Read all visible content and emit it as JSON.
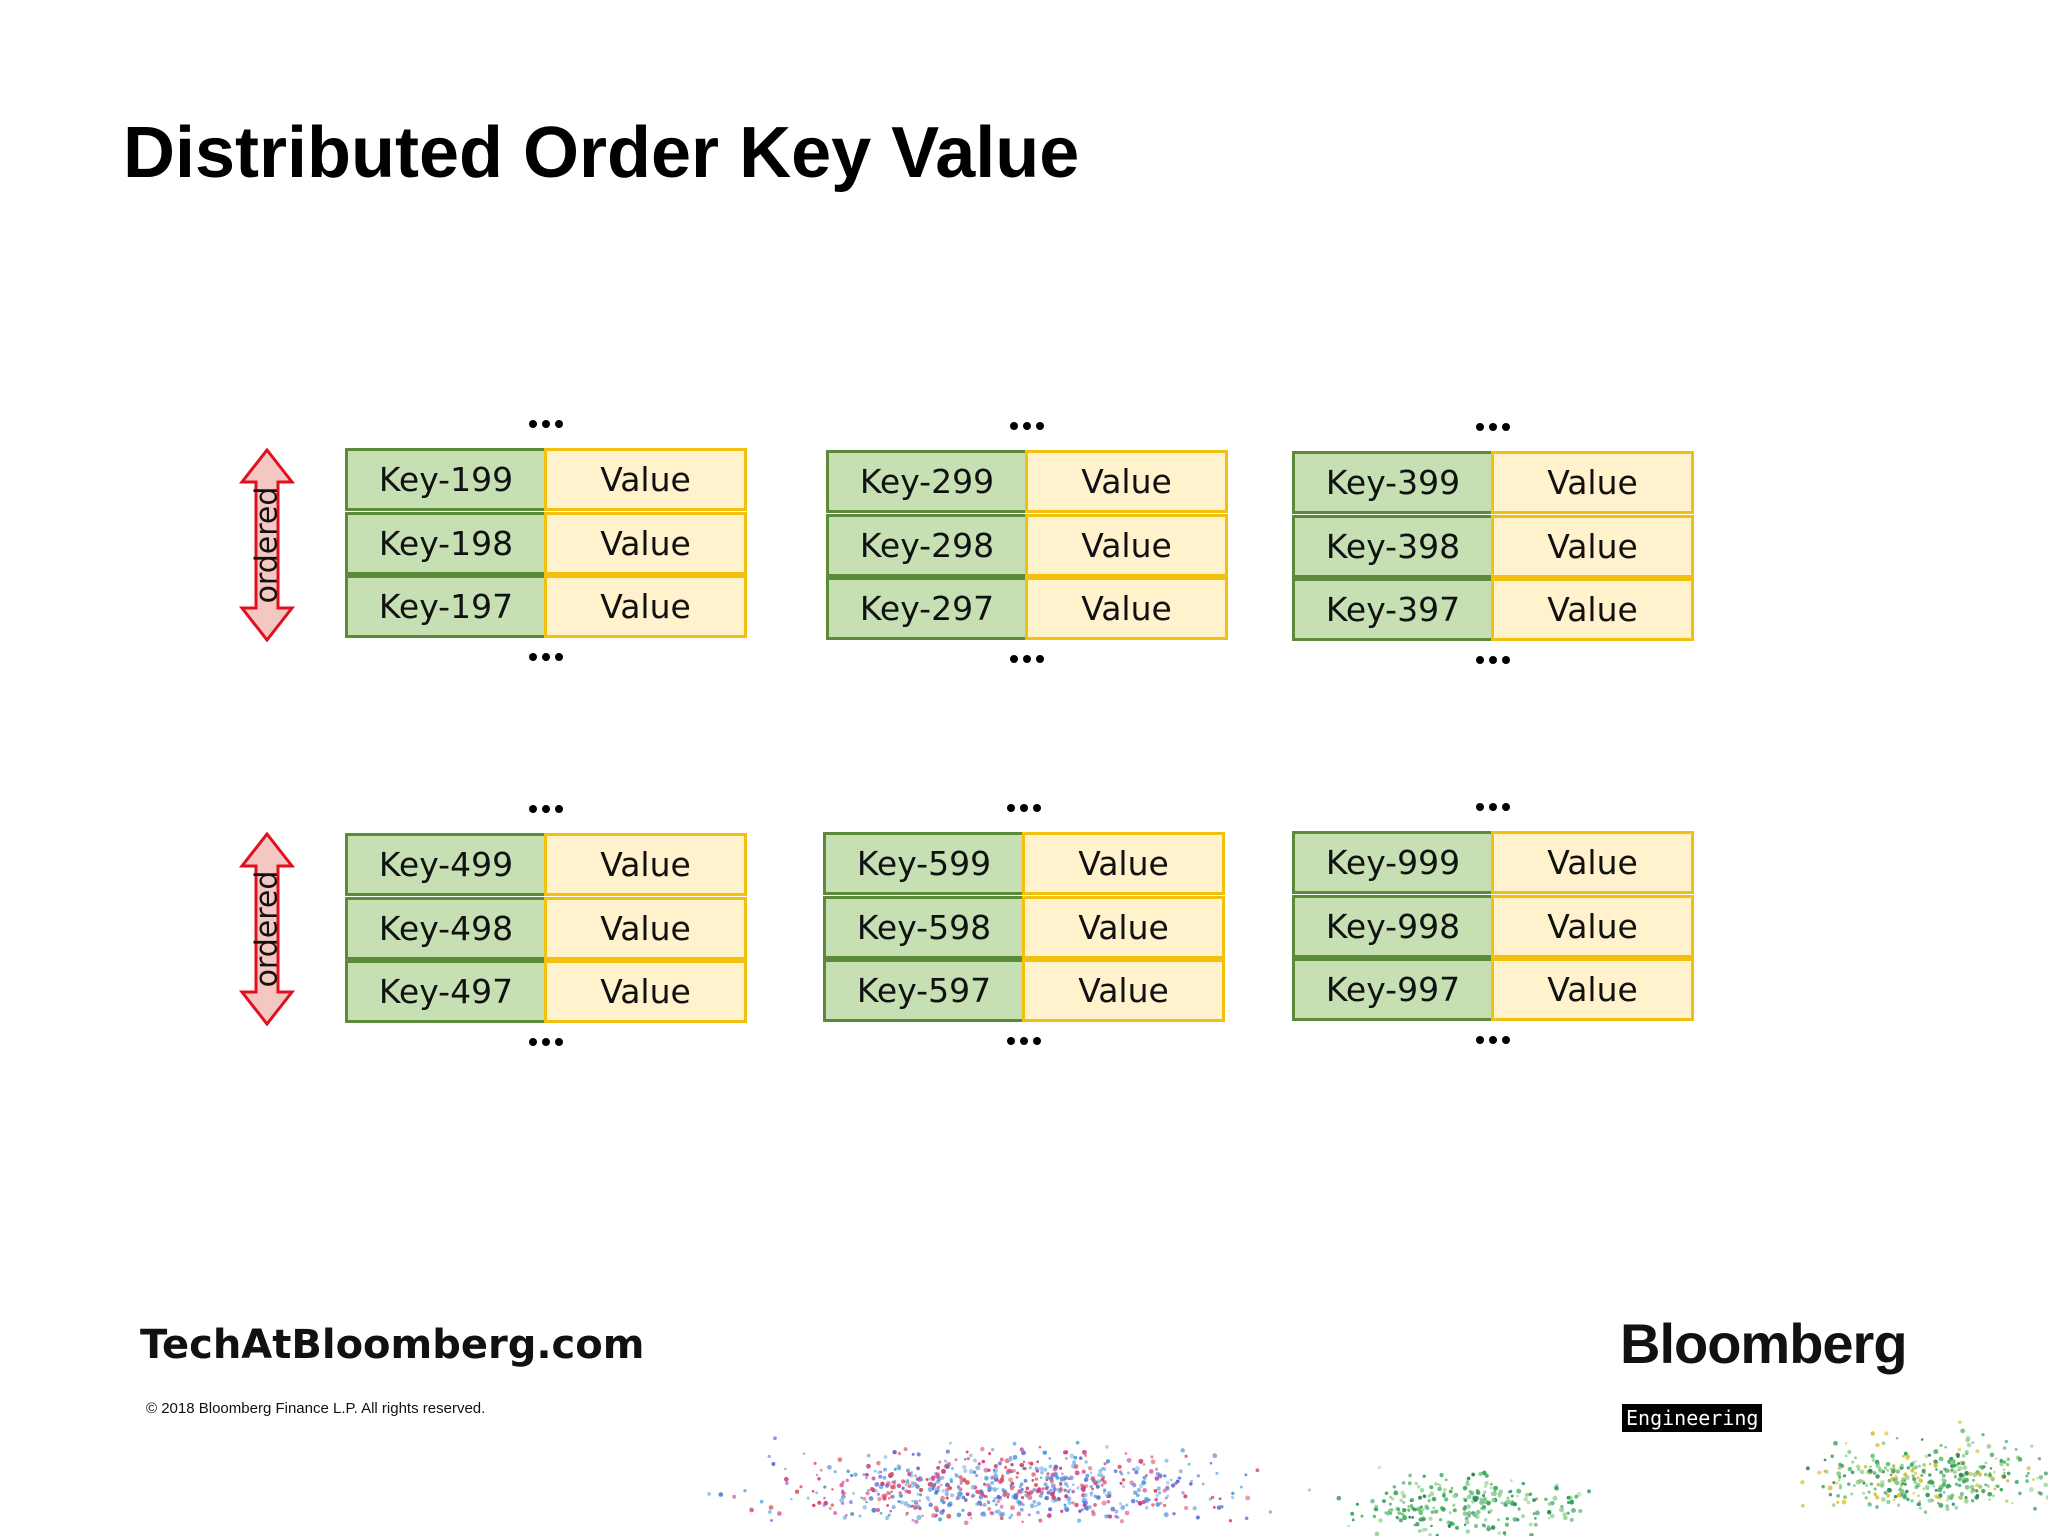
{
  "slide": {
    "title": "Distributed Order Key Value"
  },
  "diagram": {
    "arrow_label": "ordered",
    "ellipsis": "...",
    "colors": {
      "key_fill": "#c6e0b4",
      "key_border": "#5a8a3a",
      "value_fill": "#fff2cc",
      "value_border": "#f2c10f",
      "arrow_fill": "#f4c7c3",
      "arrow_stroke": "#e0101e"
    },
    "rows": [
      {
        "tables": [
          {
            "entries": [
              {
                "key": "Key-199",
                "value": "Value"
              },
              {
                "key": "Key-198",
                "value": "Value"
              },
              {
                "key": "Key-197",
                "value": "Value"
              }
            ]
          },
          {
            "entries": [
              {
                "key": "Key-299",
                "value": "Value"
              },
              {
                "key": "Key-298",
                "value": "Value"
              },
              {
                "key": "Key-297",
                "value": "Value"
              }
            ]
          },
          {
            "entries": [
              {
                "key": "Key-399",
                "value": "Value"
              },
              {
                "key": "Key-398",
                "value": "Value"
              },
              {
                "key": "Key-397",
                "value": "Value"
              }
            ]
          }
        ]
      },
      {
        "tables": [
          {
            "entries": [
              {
                "key": "Key-499",
                "value": "Value"
              },
              {
                "key": "Key-498",
                "value": "Value"
              },
              {
                "key": "Key-497",
                "value": "Value"
              }
            ]
          },
          {
            "entries": [
              {
                "key": "Key-599",
                "value": "Value"
              },
              {
                "key": "Key-598",
                "value": "Value"
              },
              {
                "key": "Key-597",
                "value": "Value"
              }
            ]
          },
          {
            "entries": [
              {
                "key": "Key-999",
                "value": "Value"
              },
              {
                "key": "Key-998",
                "value": "Value"
              },
              {
                "key": "Key-997",
                "value": "Value"
              }
            ]
          }
        ]
      }
    ]
  },
  "footer": {
    "site": "TechAtBloomberg.com",
    "copyright": "© 2018 Bloomberg Finance L.P. All rights reserved.",
    "brand": "Bloomberg",
    "brand_tag": "Engineering"
  }
}
